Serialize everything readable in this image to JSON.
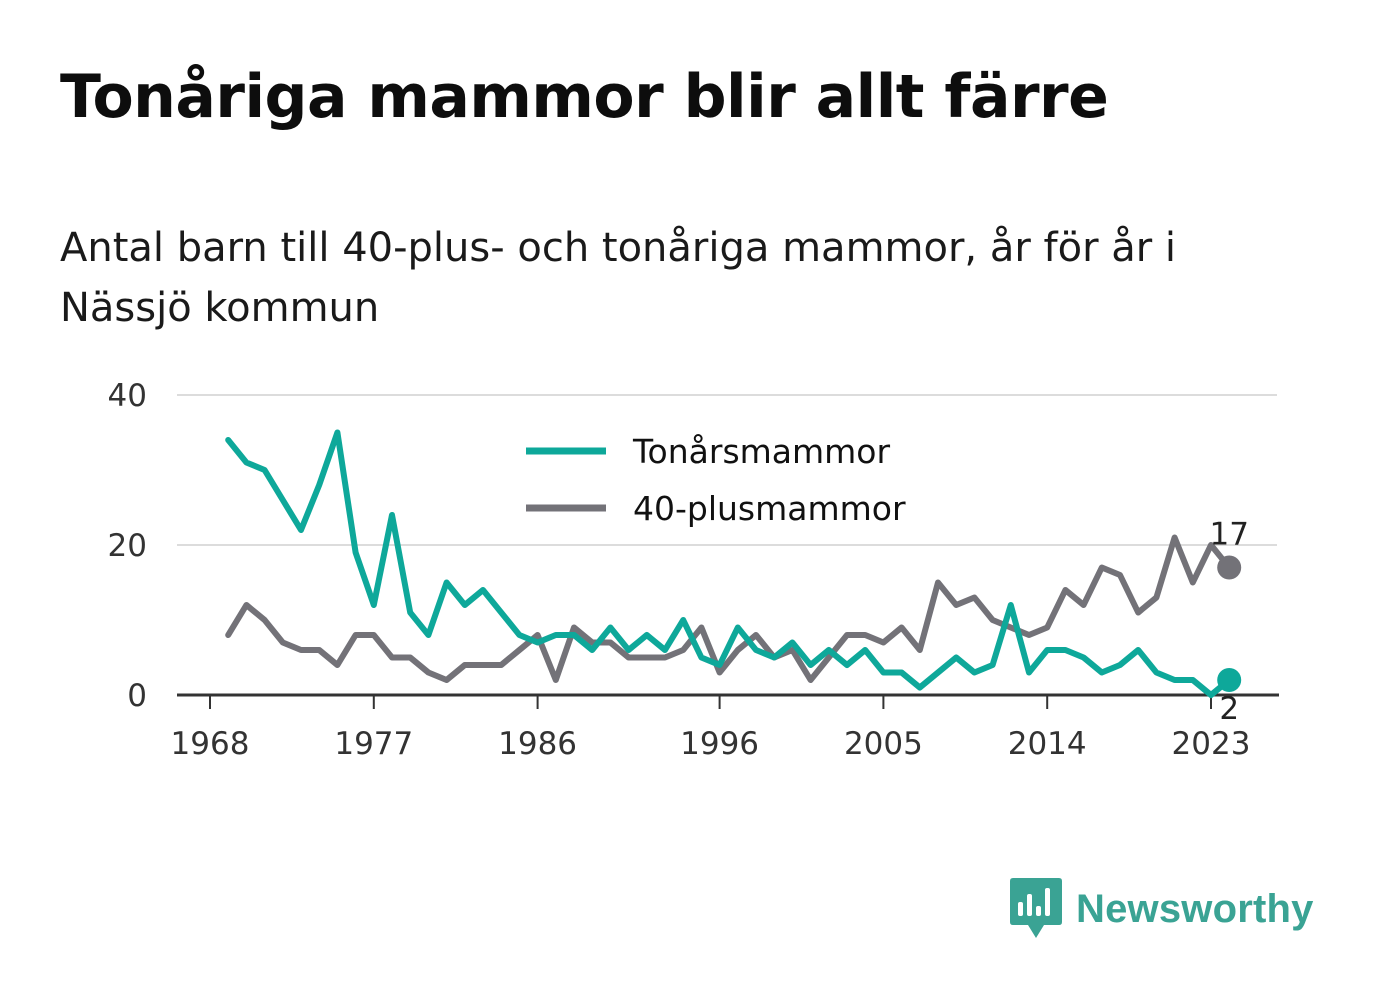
{
  "title": "Tonåriga mammor blir allt färre",
  "subtitle": "Antal barn till 40-plus- och tonåriga mammor, år för år i Nässjö kommun",
  "brand": {
    "name": "Newsworthy",
    "icon": "newsworthy-logo-icon",
    "color": "#3aa394"
  },
  "chart_data": {
    "type": "line",
    "x": [
      1969,
      1970,
      1971,
      1972,
      1973,
      1974,
      1975,
      1976,
      1977,
      1978,
      1979,
      1980,
      1981,
      1982,
      1983,
      1984,
      1985,
      1986,
      1987,
      1988,
      1989,
      1990,
      1991,
      1992,
      1993,
      1994,
      1995,
      1996,
      1997,
      1998,
      1999,
      2000,
      2001,
      2002,
      2003,
      2004,
      2005,
      2006,
      2007,
      2008,
      2009,
      2010,
      2011,
      2012,
      2013,
      2014,
      2015,
      2016,
      2017,
      2018,
      2019,
      2020,
      2021,
      2022,
      2023,
      2024
    ],
    "series": [
      {
        "name": "Tonårsmammor",
        "color": "#0ea89a",
        "values": [
          34,
          31,
          30,
          26,
          22,
          28,
          35,
          19,
          12,
          24,
          11,
          8,
          15,
          12,
          14,
          11,
          8,
          7,
          8,
          8,
          6,
          9,
          6,
          8,
          6,
          10,
          5,
          4,
          9,
          6,
          5,
          7,
          4,
          6,
          4,
          6,
          3,
          3,
          1,
          3,
          5,
          3,
          4,
          12,
          3,
          6,
          6,
          5,
          3,
          4,
          6,
          3,
          2,
          2,
          0,
          2
        ]
      },
      {
        "name": "40-plusmammor",
        "color": "#737278",
        "values": [
          8,
          12,
          10,
          7,
          6,
          6,
          4,
          8,
          8,
          5,
          5,
          3,
          2,
          4,
          4,
          4,
          6,
          8,
          2,
          9,
          7,
          7,
          5,
          5,
          5,
          6,
          9,
          3,
          6,
          8,
          5,
          6,
          2,
          5,
          8,
          8,
          7,
          9,
          6,
          15,
          12,
          13,
          10,
          9,
          8,
          9,
          14,
          12,
          17,
          16,
          11,
          13,
          21,
          15,
          20,
          17
        ]
      }
    ],
    "x_ticks": [
      "1968",
      "1977",
      "1986",
      "1996",
      "2005",
      "2014",
      "2023"
    ],
    "y_ticks": [
      "0",
      "20",
      "40"
    ],
    "ylim": [
      0,
      40
    ],
    "grid": true,
    "legend_position": "top-center",
    "end_labels": [
      "17",
      "2"
    ]
  }
}
